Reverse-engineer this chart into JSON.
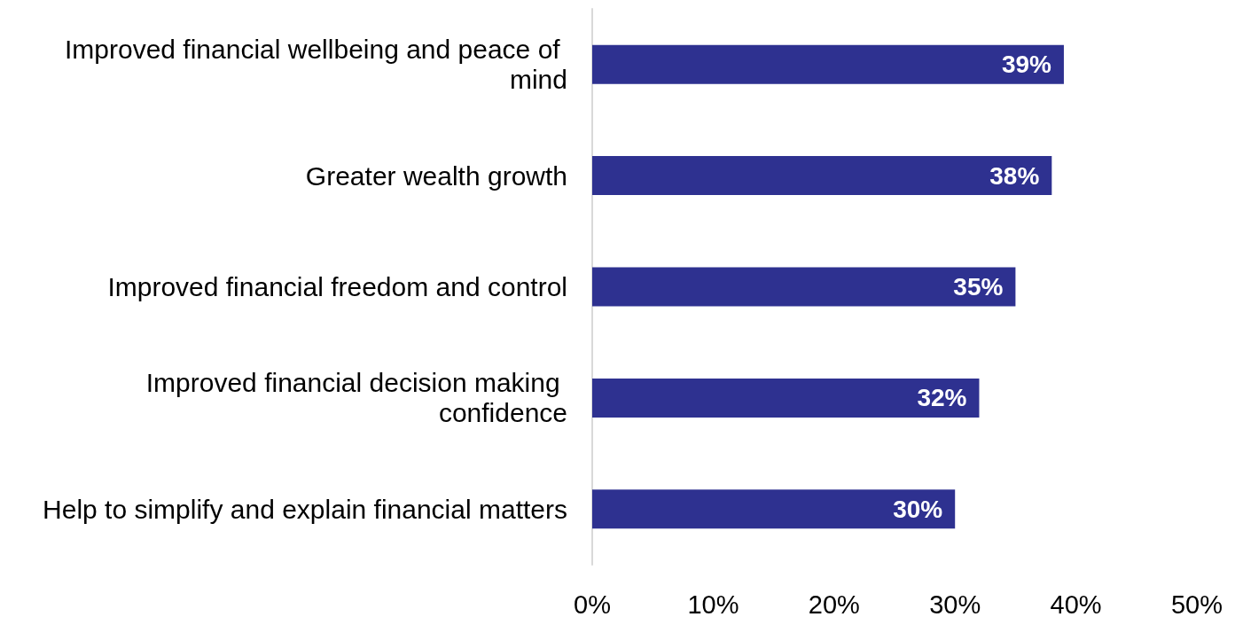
{
  "chart_data": {
    "type": "bar",
    "orientation": "horizontal",
    "categories": [
      "Improved financial wellbeing and peace of mind",
      "Greater wealth growth",
      "Improved financial freedom and control",
      "Improved financial decision making confidence",
      "Help to simplify and explain financial matters"
    ],
    "values": [
      39,
      38,
      35,
      32,
      30
    ],
    "value_labels": [
      "39%",
      "38%",
      "35%",
      "32%",
      "30%"
    ],
    "color": "#2e3190",
    "xlim": [
      0,
      50
    ],
    "xticks": [
      {
        "value": 0,
        "label": "0%"
      },
      {
        "value": 10,
        "label": "10%"
      },
      {
        "value": 20,
        "label": "20%"
      },
      {
        "value": 30,
        "label": "30%"
      },
      {
        "value": 40,
        "label": "40%"
      },
      {
        "value": 50,
        "label": "50%"
      }
    ],
    "grid": false
  }
}
